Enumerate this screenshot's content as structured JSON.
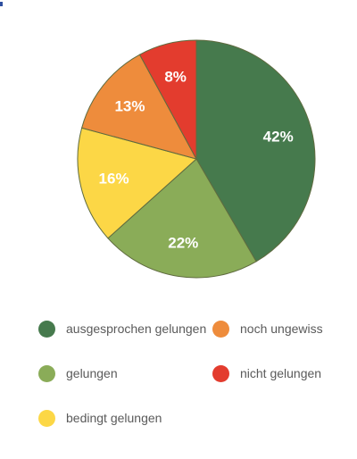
{
  "chart_data": {
    "type": "pie",
    "title": "",
    "slices": [
      {
        "label": "ausgesprochen gelungen",
        "value": 42,
        "display": "42%",
        "color": "#467a4d"
      },
      {
        "label": "gelungen",
        "value": 22,
        "display": "22%",
        "color": "#8aac58"
      },
      {
        "label": "bedingt gelungen",
        "value": 16,
        "display": "16%",
        "color": "#fcd746"
      },
      {
        "label": "noch ungewiss",
        "value": 13,
        "display": "13%",
        "color": "#ee8c3c"
      },
      {
        "label": "nicht gelungen",
        "value": 8,
        "display": "8%",
        "color": "#e33c2e"
      }
    ],
    "start_angle_deg": 0,
    "direction": "clockwise",
    "slice_border_color": "#5f6b3f",
    "label_color": "#ffffff",
    "legend_position": "bottom",
    "legend_columns": 2
  },
  "legend": {
    "items": [
      {
        "label": "ausgesprochen gelungen",
        "color": "#467a4d"
      },
      {
        "label": "noch ungewiss",
        "color": "#ee8c3c"
      },
      {
        "label": "gelungen",
        "color": "#8aac58"
      },
      {
        "label": "nicht gelungen",
        "color": "#e33c2e"
      },
      {
        "label": "bedingt gelungen",
        "color": "#fcd746"
      }
    ]
  }
}
